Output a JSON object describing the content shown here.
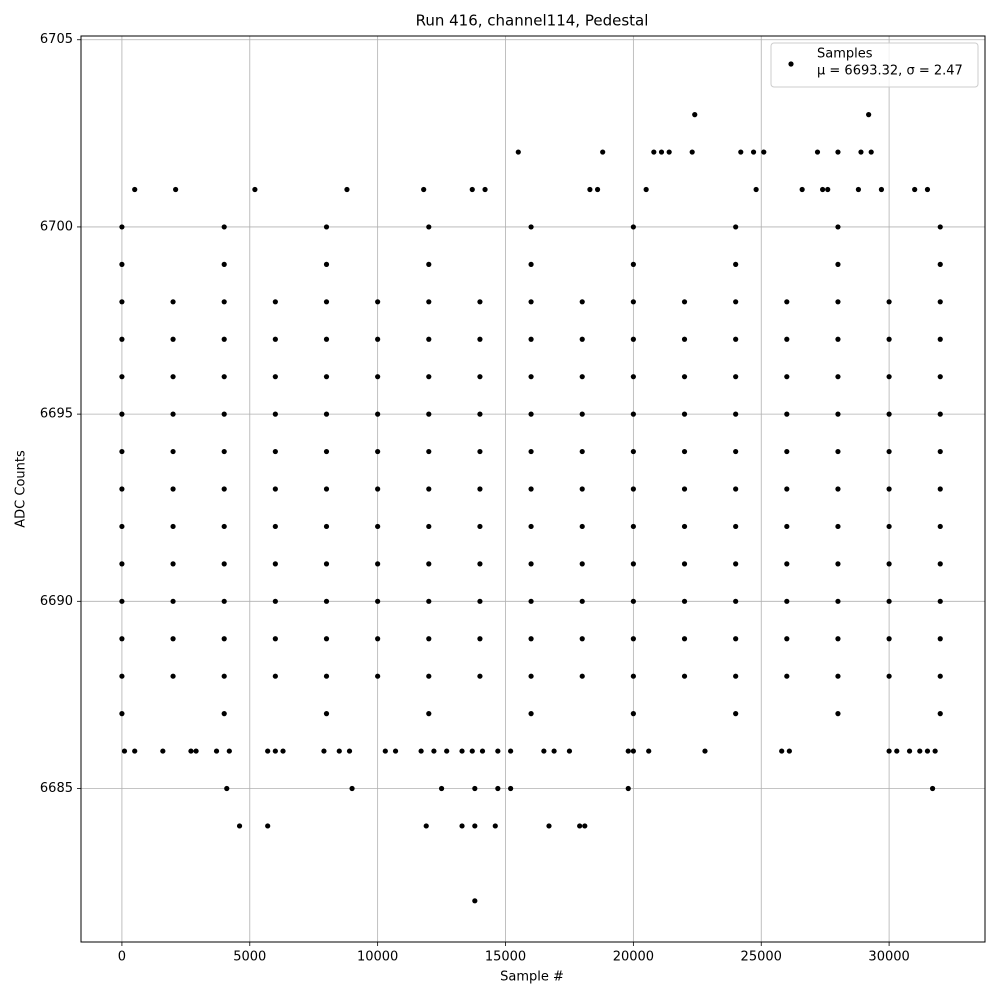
{
  "chart_data": {
    "type": "scatter",
    "title": "Run 416, channel114, Pedestal",
    "x_label": "Sample #",
    "y_label": "ADC Counts",
    "xlim": [
      -1600,
      33750
    ],
    "ylim": [
      6680.9,
      6705.1
    ],
    "xticks": [
      0,
      5000,
      10000,
      15000,
      20000,
      25000,
      30000
    ],
    "yticks": [
      6685,
      6690,
      6695,
      6700,
      6705
    ],
    "grid": true,
    "legend": "upper right",
    "legend_note": "μ = 6693.32, σ = 2.47",
    "series": [
      {
        "name": "Samples",
        "color": "#000000",
        "x": [
          0,
          2000,
          4000,
          6000,
          8000,
          10000,
          12000,
          14000,
          16000,
          18000,
          20000,
          22000,
          24000,
          26000,
          28000,
          30000,
          32000,
          0,
          2000,
          4000,
          6000,
          8000,
          10000,
          12000,
          14000,
          16000,
          18000,
          20000,
          22000,
          24000,
          26000,
          28000,
          30000,
          32000,
          0,
          2000,
          4000,
          6000,
          8000,
          10000,
          12000,
          14000,
          16000,
          18000,
          20000,
          22000,
          24000,
          26000,
          28000,
          30000,
          32000,
          0,
          2000,
          4000,
          6000,
          8000,
          10000,
          12000,
          14000,
          16000,
          18000,
          20000,
          22000,
          24000,
          26000,
          28000,
          30000,
          32000,
          0,
          2000,
          4000,
          6000,
          8000,
          10000,
          12000,
          14000,
          16000,
          18000,
          20000,
          22000,
          24000,
          26000,
          28000,
          30000,
          32000,
          0,
          2000,
          4000,
          6000,
          8000,
          10000,
          12000,
          14000,
          16000,
          18000,
          20000,
          22000,
          24000,
          26000,
          28000,
          30000,
          32000,
          0,
          2000,
          4000,
          6000,
          8000,
          10000,
          12000,
          14000,
          16000,
          18000,
          20000,
          22000,
          24000,
          26000,
          28000,
          30000,
          32000,
          0,
          2000,
          4000,
          6000,
          8000,
          10000,
          12000,
          14000,
          16000,
          18000,
          20000,
          22000,
          24000,
          26000,
          28000,
          30000,
          32000,
          0,
          2000,
          4000,
          6000,
          8000,
          10000,
          12000,
          14000,
          16000,
          18000,
          20000,
          22000,
          24000,
          26000,
          28000,
          30000,
          32000,
          0,
          2000,
          4000,
          6000,
          8000,
          10000,
          12000,
          14000,
          16000,
          18000,
          20000,
          22000,
          24000,
          26000,
          28000,
          30000,
          32000,
          0,
          2000,
          4000,
          6000,
          8000,
          10000,
          12000,
          14000,
          16000,
          18000,
          20000,
          22000,
          24000,
          26000,
          28000,
          30000,
          32000,
          0,
          4000,
          8000,
          12000,
          16000,
          20000,
          24000,
          28000,
          32000,
          0,
          4000,
          8000,
          12000,
          16000,
          20000,
          24000,
          28000,
          32000,
          0,
          4000,
          8000,
          12000,
          16000,
          20000,
          24000,
          28000,
          32000,
          500,
          2100,
          5200,
          8800,
          11800,
          13700,
          14200,
          18300,
          18600,
          20500,
          24800,
          26600,
          27400,
          27600,
          28800,
          29700,
          31000,
          31500,
          15500,
          18800,
          20800,
          21100,
          21400,
          22300,
          24200,
          24700,
          25100,
          27200,
          28000,
          28900,
          29300,
          22400,
          29200,
          100,
          500,
          1600,
          2700,
          2900,
          3700,
          4200,
          5700,
          6000,
          6300,
          7900,
          8500,
          8900,
          10300,
          10700,
          11700,
          12200,
          12700,
          13300,
          13700,
          14100,
          14700,
          15200,
          16500,
          16900,
          17500,
          19800,
          20000,
          20600,
          22800,
          25800,
          26100,
          30000,
          30300,
          30800,
          31200,
          31500,
          31800,
          4100,
          9000,
          12500,
          13800,
          14700,
          15200,
          19800,
          31700,
          4600,
          5700,
          11900,
          13300,
          13800,
          14600,
          16700,
          17900,
          18100,
          13800
        ],
        "y": [
          6688,
          6688,
          6688,
          6688,
          6688,
          6688,
          6688,
          6688,
          6688,
          6688,
          6688,
          6688,
          6688,
          6688,
          6688,
          6688,
          6688,
          6689,
          6689,
          6689,
          6689,
          6689,
          6689,
          6689,
          6689,
          6689,
          6689,
          6689,
          6689,
          6689,
          6689,
          6689,
          6689,
          6689,
          6690,
          6690,
          6690,
          6690,
          6690,
          6690,
          6690,
          6690,
          6690,
          6690,
          6690,
          6690,
          6690,
          6690,
          6690,
          6690,
          6690,
          6691,
          6691,
          6691,
          6691,
          6691,
          6691,
          6691,
          6691,
          6691,
          6691,
          6691,
          6691,
          6691,
          6691,
          6691,
          6691,
          6691,
          6692,
          6692,
          6692,
          6692,
          6692,
          6692,
          6692,
          6692,
          6692,
          6692,
          6692,
          6692,
          6692,
          6692,
          6692,
          6692,
          6692,
          6693,
          6693,
          6693,
          6693,
          6693,
          6693,
          6693,
          6693,
          6693,
          6693,
          6693,
          6693,
          6693,
          6693,
          6693,
          6693,
          6693,
          6694,
          6694,
          6694,
          6694,
          6694,
          6694,
          6694,
          6694,
          6694,
          6694,
          6694,
          6694,
          6694,
          6694,
          6694,
          6694,
          6694,
          6695,
          6695,
          6695,
          6695,
          6695,
          6695,
          6695,
          6695,
          6695,
          6695,
          6695,
          6695,
          6695,
          6695,
          6695,
          6695,
          6695,
          6696,
          6696,
          6696,
          6696,
          6696,
          6696,
          6696,
          6696,
          6696,
          6696,
          6696,
          6696,
          6696,
          6696,
          6696,
          6696,
          6696,
          6697,
          6697,
          6697,
          6697,
          6697,
          6697,
          6697,
          6697,
          6697,
          6697,
          6697,
          6697,
          6697,
          6697,
          6697,
          6697,
          6697,
          6698,
          6698,
          6698,
          6698,
          6698,
          6698,
          6698,
          6698,
          6698,
          6698,
          6698,
          6698,
          6698,
          6698,
          6698,
          6698,
          6698,
          6687,
          6687,
          6687,
          6687,
          6687,
          6687,
          6687,
          6687,
          6687,
          6699,
          6699,
          6699,
          6699,
          6699,
          6699,
          6699,
          6699,
          6699,
          6700,
          6700,
          6700,
          6700,
          6700,
          6700,
          6700,
          6700,
          6700,
          6701,
          6701,
          6701,
          6701,
          6701,
          6701,
          6701,
          6701,
          6701,
          6701,
          6701,
          6701,
          6701,
          6701,
          6701,
          6701,
          6701,
          6701,
          6702,
          6702,
          6702,
          6702,
          6702,
          6702,
          6702,
          6702,
          6702,
          6702,
          6702,
          6702,
          6702,
          6703,
          6703,
          6686,
          6686,
          6686,
          6686,
          6686,
          6686,
          6686,
          6686,
          6686,
          6686,
          6686,
          6686,
          6686,
          6686,
          6686,
          6686,
          6686,
          6686,
          6686,
          6686,
          6686,
          6686,
          6686,
          6686,
          6686,
          6686,
          6686,
          6686,
          6686,
          6686,
          6686,
          6686,
          6686,
          6686,
          6686,
          6686,
          6686,
          6686,
          6685,
          6685,
          6685,
          6685,
          6685,
          6685,
          6685,
          6685,
          6684,
          6684,
          6684,
          6684,
          6684,
          6684,
          6684,
          6684,
          6684,
          6682
        ]
      }
    ]
  }
}
